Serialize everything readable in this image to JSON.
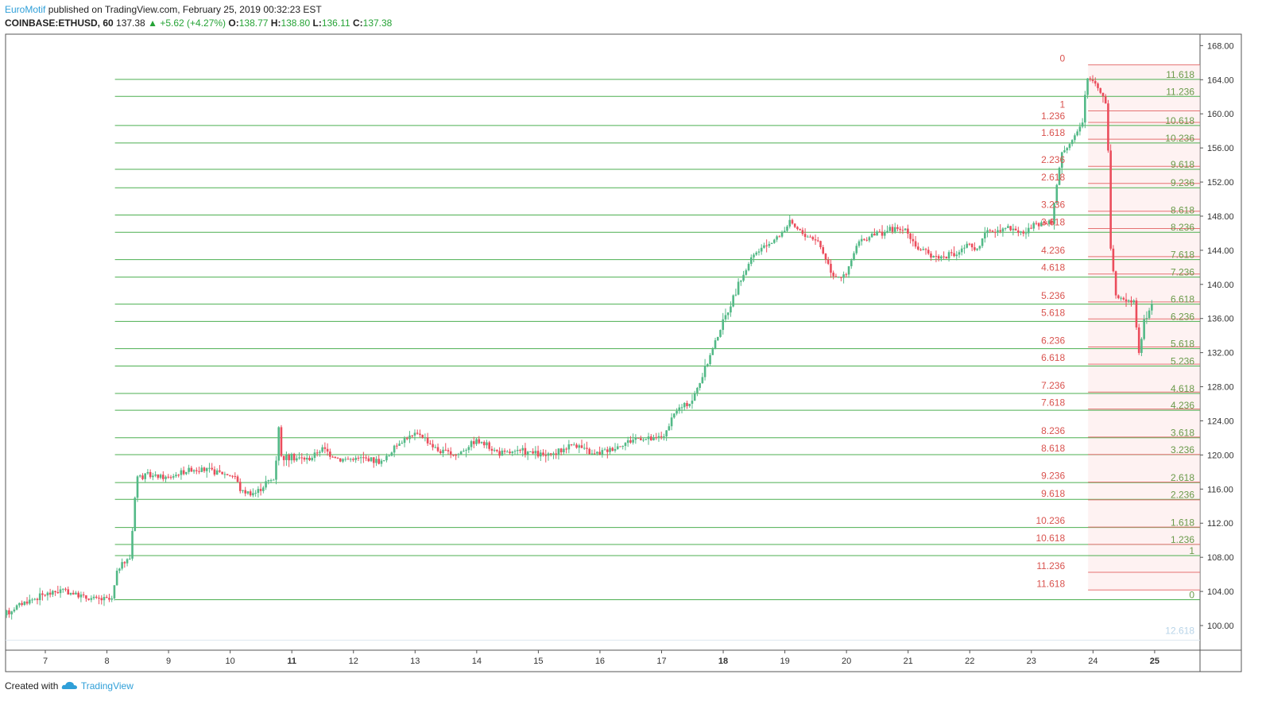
{
  "header": {
    "author": "EuroMotif",
    "published_text": "published on TradingView.com, February 25, 2019 00:32:23 EST",
    "symbol": "COINBASE:ETHUSD, 60",
    "last": "137.38",
    "change": "+5.62 (+4.27%)",
    "o_label": "O:",
    "o_value": "138.77",
    "h_label": "H:",
    "h_value": "138.80",
    "l_label": "L:",
    "l_value": "136.11",
    "c_label": "C:",
    "c_value": "137.38"
  },
  "footer": {
    "created_with": "Created with",
    "brand": "TradingView"
  },
  "colors": {
    "up": "#53b987",
    "down": "#eb4d5c",
    "fib_green": "#4caf50",
    "fib_red": "#e57373",
    "axis_text": "#333333",
    "frame": "#555555",
    "zone_fill": "#fde8e8",
    "brand": "#2f9fd8"
  },
  "icons": {
    "up_arrow": "triangle-up-icon",
    "tradingview_logo": "tradingview-cloud-icon"
  },
  "chart_data": {
    "type": "candlestick",
    "timeframe": "60",
    "ylim": [
      98,
      169
    ],
    "y_ticks": [
      "100.00",
      "104.00",
      "108.00",
      "112.00",
      "116.00",
      "120.00",
      "124.00",
      "128.00",
      "132.00",
      "136.00",
      "140.00",
      "144.00",
      "148.00",
      "152.00",
      "156.00",
      "160.00",
      "164.00",
      "168.00"
    ],
    "x_ticks": [
      {
        "label": "7",
        "day": 7,
        "bold": false
      },
      {
        "label": "8",
        "day": 8,
        "bold": false
      },
      {
        "label": "9",
        "day": 9,
        "bold": false
      },
      {
        "label": "10",
        "day": 10,
        "bold": false
      },
      {
        "label": "11",
        "day": 11,
        "bold": true
      },
      {
        "label": "12",
        "day": 12,
        "bold": false
      },
      {
        "label": "13",
        "day": 13,
        "bold": false
      },
      {
        "label": "14",
        "day": 14,
        "bold": false
      },
      {
        "label": "15",
        "day": 15,
        "bold": false
      },
      {
        "label": "16",
        "day": 16,
        "bold": false
      },
      {
        "label": "17",
        "day": 17,
        "bold": false
      },
      {
        "label": "18",
        "day": 18,
        "bold": true
      },
      {
        "label": "19",
        "day": 19,
        "bold": false
      },
      {
        "label": "20",
        "day": 20,
        "bold": false
      },
      {
        "label": "21",
        "day": 21,
        "bold": false
      },
      {
        "label": "22",
        "day": 22,
        "bold": false
      },
      {
        "label": "23",
        "day": 23,
        "bold": false
      },
      {
        "label": "24",
        "day": 24,
        "bold": false
      },
      {
        "label": "25",
        "day": 25,
        "bold": true
      }
    ],
    "xlim_days": [
      6.35,
      25.7
    ],
    "price_path": [
      [
        6.35,
        101.2
      ],
      [
        6.6,
        102.5
      ],
      [
        7.0,
        103.6
      ],
      [
        7.3,
        104.2
      ],
      [
        7.7,
        103.2
      ],
      [
        8.1,
        103.0
      ],
      [
        8.2,
        106.8
      ],
      [
        8.4,
        108.0
      ],
      [
        8.5,
        117.5
      ],
      [
        8.7,
        117.6
      ],
      [
        9.0,
        117.3
      ],
      [
        9.4,
        118.4
      ],
      [
        9.8,
        118.0
      ],
      [
        10.1,
        117.5
      ],
      [
        10.2,
        115.7
      ],
      [
        10.45,
        115.6
      ],
      [
        10.6,
        116.8
      ],
      [
        10.75,
        117.2
      ],
      [
        10.8,
        124.2
      ],
      [
        10.85,
        119.8
      ],
      [
        11.3,
        119.5
      ],
      [
        11.5,
        120.8
      ],
      [
        11.8,
        119.5
      ],
      [
        12.2,
        119.6
      ],
      [
        12.5,
        119.2
      ],
      [
        12.8,
        121.8
      ],
      [
        13.1,
        122.5
      ],
      [
        13.4,
        120.5
      ],
      [
        13.7,
        120.0
      ],
      [
        14.0,
        121.8
      ],
      [
        14.4,
        120.2
      ],
      [
        14.8,
        120.4
      ],
      [
        15.2,
        119.8
      ],
      [
        15.6,
        121.4
      ],
      [
        15.9,
        120.0
      ],
      [
        16.3,
        121.0
      ],
      [
        16.6,
        122.0
      ],
      [
        16.9,
        121.8
      ],
      [
        17.1,
        122.6
      ],
      [
        17.25,
        125.2
      ],
      [
        17.5,
        126.2
      ],
      [
        17.7,
        129.5
      ],
      [
        17.9,
        133.5
      ],
      [
        18.1,
        137.0
      ],
      [
        18.3,
        140.5
      ],
      [
        18.5,
        143.3
      ],
      [
        18.75,
        144.8
      ],
      [
        18.9,
        145.5
      ],
      [
        19.1,
        147.2
      ],
      [
        19.3,
        146.0
      ],
      [
        19.55,
        145.2
      ],
      [
        19.8,
        141.2
      ],
      [
        20.0,
        140.8
      ],
      [
        20.2,
        144.8
      ],
      [
        20.5,
        146.0
      ],
      [
        20.8,
        146.5
      ],
      [
        21.0,
        146.3
      ],
      [
        21.2,
        144.0
      ],
      [
        21.5,
        143.2
      ],
      [
        21.8,
        143.5
      ],
      [
        22.0,
        144.8
      ],
      [
        22.1,
        143.8
      ],
      [
        22.3,
        146.0
      ],
      [
        22.6,
        146.8
      ],
      [
        22.9,
        146.0
      ],
      [
        23.1,
        147.0
      ],
      [
        23.35,
        147.2
      ],
      [
        23.5,
        155.2
      ],
      [
        23.7,
        157.2
      ],
      [
        23.85,
        158.8
      ],
      [
        23.92,
        164.2
      ],
      [
        24.05,
        163.8
      ],
      [
        24.15,
        162.5
      ],
      [
        24.25,
        161.0
      ],
      [
        24.3,
        145.0
      ],
      [
        24.4,
        138.2
      ],
      [
        24.55,
        138.4
      ],
      [
        24.7,
        138.0
      ],
      [
        24.75,
        131.5
      ],
      [
        24.85,
        135.5
      ],
      [
        24.95,
        137.4
      ]
    ],
    "fib_green": {
      "start_day": 8.13,
      "levels": [
        {
          "label": "11.618",
          "price": 164.04
        },
        {
          "label": "11.236",
          "price": 162.04
        },
        {
          "label": "10.618",
          "price": 158.63
        },
        {
          "label": "10.236",
          "price": 156.58
        },
        {
          "label": "9.618",
          "price": 153.5
        },
        {
          "label": "9.236",
          "price": 151.33
        },
        {
          "label": "8.618",
          "price": 148.14
        },
        {
          "label": "8.236",
          "price": 146.11
        },
        {
          "label": "7.618",
          "price": 142.9
        },
        {
          "label": "7.236",
          "price": 140.86
        },
        {
          "label": "6.618",
          "price": 137.69
        },
        {
          "label": "6.236",
          "price": 135.66
        },
        {
          "label": "5.618",
          "price": 132.47
        },
        {
          "label": "5.236",
          "price": 130.43
        },
        {
          "label": "4.618",
          "price": 127.21
        },
        {
          "label": "4.236",
          "price": 125.24
        },
        {
          "label": "3.618",
          "price": 122.02
        },
        {
          "label": "3.236",
          "price": 120.04
        },
        {
          "label": "2.618",
          "price": 116.76
        },
        {
          "label": "2.236",
          "price": 114.79
        },
        {
          "label": "1.618",
          "price": 111.5
        },
        {
          "label": "1.236",
          "price": 109.51
        },
        {
          "label": "1",
          "price": 108.2
        },
        {
          "label": "0",
          "price": 103.03
        }
      ],
      "faded_label": {
        "label": "12.618",
        "price": 98.85
      }
    },
    "fib_red": {
      "start_day": 23.92,
      "levels": [
        {
          "label": "0",
          "price": 165.74
        },
        {
          "label": "1",
          "price": 160.35
        },
        {
          "label": "1.236",
          "price": 158.99
        },
        {
          "label": "1.618",
          "price": 157.02
        },
        {
          "label": "2.236",
          "price": 153.85
        },
        {
          "label": "2.618",
          "price": 151.84
        },
        {
          "label": "3.236",
          "price": 148.58
        },
        {
          "label": "3.618",
          "price": 146.55
        },
        {
          "label": "4.236",
          "price": 143.25
        },
        {
          "label": "4.618",
          "price": 141.22
        },
        {
          "label": "5.236",
          "price": 137.94
        },
        {
          "label": "5.618",
          "price": 135.95
        },
        {
          "label": "6.236",
          "price": 132.67
        },
        {
          "label": "6.618",
          "price": 130.65
        },
        {
          "label": "7.236",
          "price": 127.38
        },
        {
          "label": "7.618",
          "price": 125.39
        },
        {
          "label": "8.236",
          "price": 122.1
        },
        {
          "label": "8.618",
          "price": 120.06
        },
        {
          "label": "9.236",
          "price": 116.82
        },
        {
          "label": "9.618",
          "price": 114.74
        },
        {
          "label": "10.236",
          "price": 111.54
        },
        {
          "label": "10.618",
          "price": 109.52
        },
        {
          "label": "11.236",
          "price": 106.25
        },
        {
          "label": "11.618",
          "price": 104.17
        }
      ]
    }
  }
}
